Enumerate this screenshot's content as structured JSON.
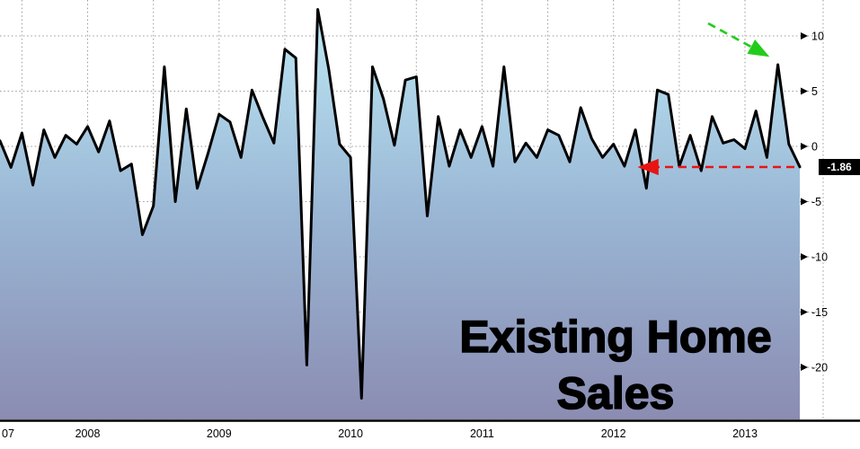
{
  "chart": {
    "title_line1": "Existing Home",
    "title_line2": "Sales",
    "last_label": "-1.86"
  },
  "chart_data": {
    "type": "area",
    "title": "Existing Home Sales",
    "xlabel": "",
    "ylabel": "",
    "grid": true,
    "legend": false,
    "y_ticks": [
      10,
      5,
      0,
      -5,
      -10,
      -15,
      -20
    ],
    "ylim": [
      -24.7,
      13.25
    ],
    "x_months": [
      "2007-05",
      "2007-06",
      "2007-07",
      "2007-08",
      "2007-09",
      "2007-10",
      "2007-11",
      "2007-12",
      "2008-01",
      "2008-02",
      "2008-03",
      "2008-04",
      "2008-05",
      "2008-06",
      "2008-07",
      "2008-08",
      "2008-09",
      "2008-10",
      "2008-11",
      "2008-12",
      "2009-01",
      "2009-02",
      "2009-03",
      "2009-04",
      "2009-05",
      "2009-06",
      "2009-07",
      "2009-08",
      "2009-09",
      "2009-10",
      "2009-11",
      "2009-12",
      "2010-01",
      "2010-02",
      "2010-03",
      "2010-04",
      "2010-05",
      "2010-06",
      "2010-07",
      "2010-08",
      "2010-09",
      "2010-10",
      "2010-11",
      "2010-12",
      "2011-01",
      "2011-02",
      "2011-03",
      "2011-04",
      "2011-05",
      "2011-06",
      "2011-07",
      "2011-08",
      "2011-09",
      "2011-10",
      "2011-11",
      "2011-12",
      "2012-01",
      "2012-02",
      "2012-03",
      "2012-04",
      "2012-05",
      "2012-06",
      "2012-07",
      "2012-08",
      "2012-09",
      "2012-10",
      "2012-11",
      "2012-12",
      "2013-01",
      "2013-02",
      "2013-03",
      "2013-04",
      "2013-05",
      "2013-06"
    ],
    "values": [
      0.5,
      -1.9,
      1.2,
      -3.5,
      1.5,
      -1.0,
      1.0,
      0.2,
      1.8,
      -0.5,
      2.3,
      -2.2,
      -1.6,
      -8.0,
      -5.4,
      7.2,
      -5.0,
      3.4,
      -3.8,
      -0.6,
      2.9,
      2.2,
      -1.0,
      5.1,
      2.6,
      0.3,
      8.8,
      8.0,
      -19.8,
      12.4,
      7.0,
      0.2,
      -1.0,
      -22.8,
      7.2,
      4.3,
      0.1,
      6.0,
      6.3,
      -6.3,
      2.7,
      -1.8,
      1.5,
      -1.0,
      1.8,
      -1.8,
      7.2,
      -1.4,
      0.3,
      -1.0,
      1.5,
      1.0,
      -1.4,
      3.5,
      0.7,
      -1.0,
      0.2,
      -1.8,
      1.5,
      -3.8,
      5.1,
      4.7,
      -1.8,
      1.0,
      -2.2,
      2.7,
      0.3,
      0.6,
      -0.2,
      3.2,
      -1.0,
      7.4,
      0.2,
      -1.86
    ],
    "last_value": -1.86,
    "x_year_ticks": [
      {
        "label": "07",
        "i": 0,
        "align": "start"
      },
      {
        "label": "2008",
        "i": 8
      },
      {
        "label": "2009",
        "i": 20
      },
      {
        "label": "2010",
        "i": 32
      },
      {
        "label": "2011",
        "i": 44
      },
      {
        "label": "2012",
        "i": 56
      },
      {
        "label": "2013",
        "i": 68
      }
    ],
    "vgrid_month_indices": [
      2,
      8,
      14,
      20,
      26,
      32,
      38,
      44,
      50,
      56,
      62,
      68
    ],
    "annotations": [
      {
        "id": "green-arrow",
        "type": "arrow",
        "style": "dashed",
        "color_id": "green",
        "from": [
          788,
          26
        ],
        "to": [
          854,
          62
        ],
        "target": "2013 spike +7.4"
      },
      {
        "id": "red-arrow",
        "type": "arrow",
        "style": "dashed",
        "color_id": "red",
        "from": [
          884,
          186
        ],
        "to": [
          712,
          186
        ],
        "target": "latest value -1.86"
      }
    ],
    "colors": {
      "line": "#000000",
      "fill_top": "#bfeaf6",
      "fill_mid": "#9ab7d5",
      "fill_bottom": "#8b8cb2",
      "grid": "#9a9a9a",
      "green": "#23cc1a",
      "red": "#e81414"
    }
  }
}
